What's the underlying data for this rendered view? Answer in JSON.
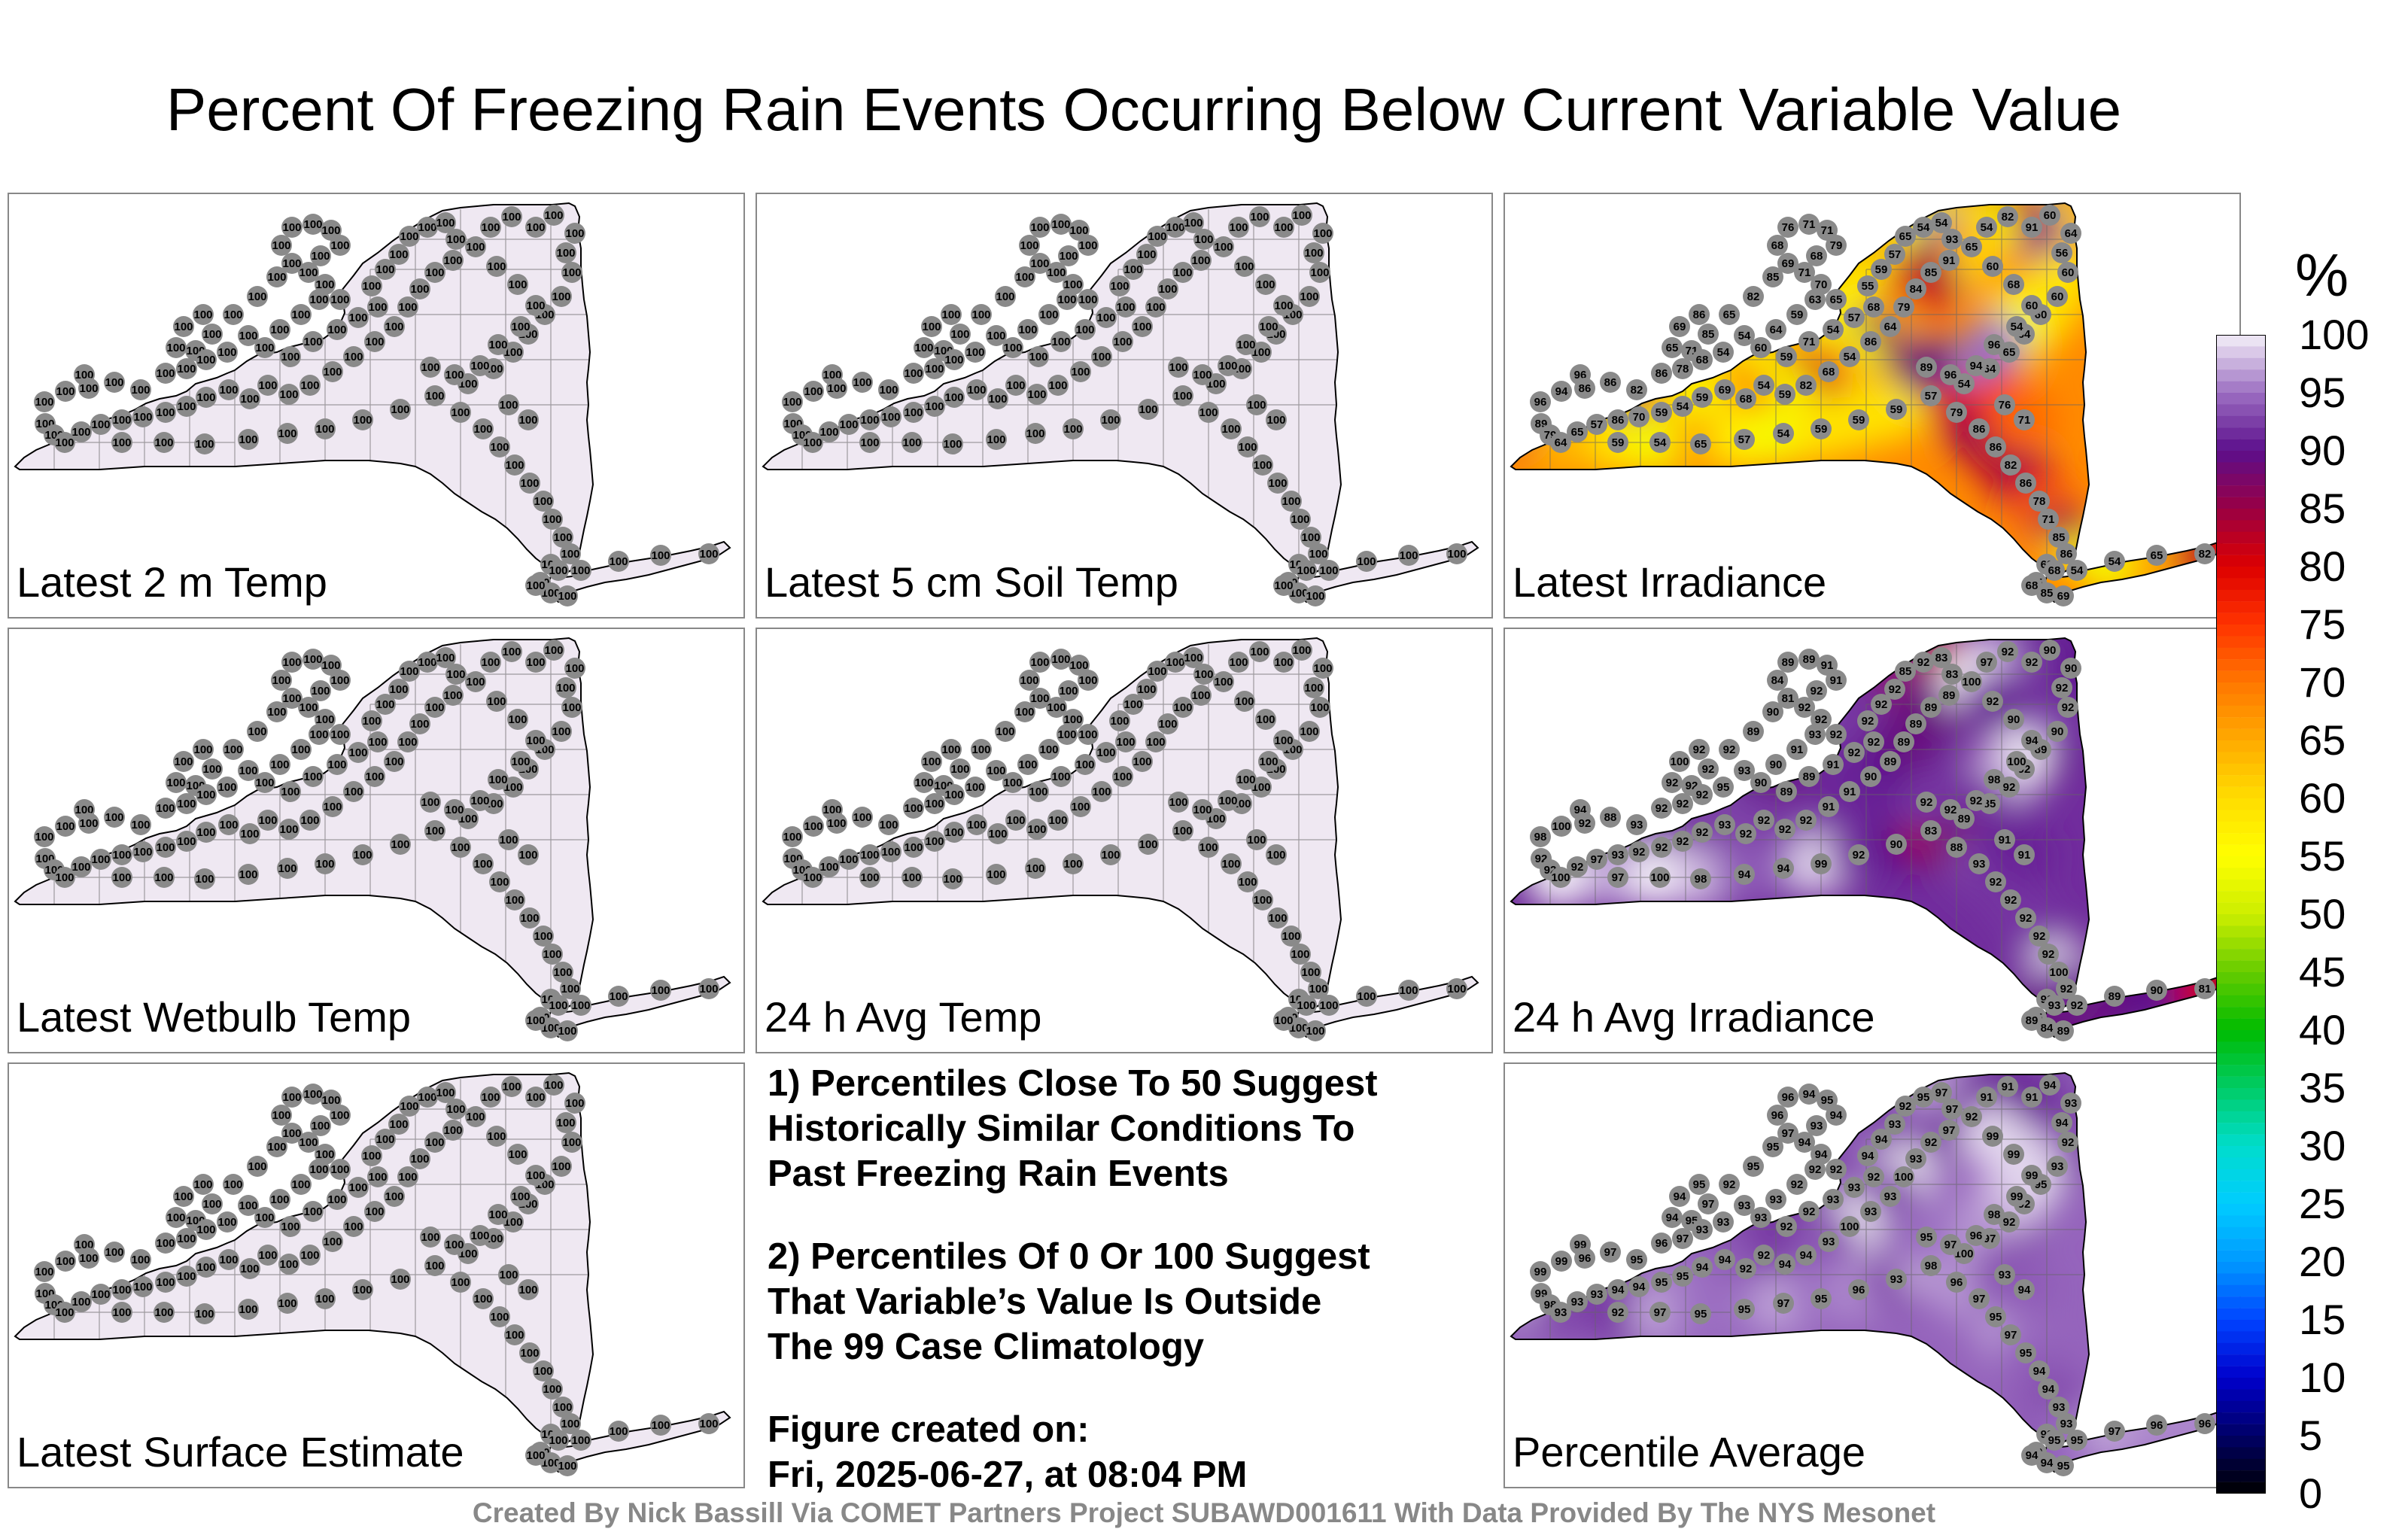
{
  "title": "Percent Of Freezing Rain Events Occurring Below Current Variable Value",
  "colors": {
    "land_fill_uniform": "#efe8f2",
    "station_marker": "#8a8a8a",
    "border": "#000000"
  },
  "panels": [
    {
      "id": "latest-2m-temp",
      "label": "Latest 2 m Temp",
      "mode": "uniform",
      "value": 100
    },
    {
      "id": "latest-5cm-soil-temp",
      "label": "Latest 5 cm Soil Temp",
      "mode": "uniform",
      "value": 100
    },
    {
      "id": "latest-irradiance",
      "label": "Latest Irradiance",
      "mode": "field",
      "field": "irradiance",
      "station_values": [
        96,
        94,
        96,
        89,
        79,
        86,
        86,
        82,
        86,
        78,
        71,
        85,
        86,
        69,
        65,
        68,
        54,
        54,
        65,
        82,
        85,
        69,
        68,
        76,
        71,
        71,
        79,
        68,
        71,
        70,
        65,
        63,
        59,
        64,
        60,
        59,
        71,
        54,
        57,
        68,
        55,
        59,
        57,
        65,
        54,
        54,
        93,
        91,
        85,
        84,
        79,
        64,
        86,
        54,
        68,
        82,
        59,
        54,
        68,
        69,
        59,
        54,
        59,
        70,
        86,
        57,
        65,
        64,
        59,
        54,
        65,
        57,
        54,
        59,
        59,
        59,
        57,
        54,
        64,
        65,
        64,
        60,
        60,
        60,
        56,
        64,
        60,
        91,
        82,
        54,
        65,
        60,
        68,
        60,
        54
      ]
    },
    {
      "id": "latest-wetbulb-temp",
      "label": "Latest Wetbulb Temp",
      "mode": "uniform",
      "value": 100
    },
    {
      "id": "24h-avg-temp",
      "label": "24 h Avg Temp",
      "mode": "uniform",
      "value": 100
    },
    {
      "id": "24h-avg-irradiance",
      "label": "24 h Avg Irradiance",
      "mode": "field",
      "field": "avg_irradiance",
      "station_values": [
        94,
        100,
        98,
        92,
        92,
        92,
        88,
        93,
        92,
        92,
        92,
        92,
        92,
        100,
        92,
        92,
        95,
        93,
        92,
        89,
        90,
        81,
        84,
        89,
        89,
        91,
        91,
        92,
        92,
        92,
        92,
        93,
        91,
        90,
        90,
        89,
        89,
        91,
        92,
        92,
        92,
        92,
        92,
        85,
        92,
        83,
        83,
        89,
        89,
        89,
        89,
        89,
        90,
        91,
        91,
        92,
        92,
        92,
        92,
        93,
        92,
        92,
        92,
        92,
        93,
        97,
        92,
        100,
        97,
        100,
        98,
        94,
        94,
        99,
        92,
        90,
        83,
        89,
        85,
        92,
        92,
        89,
        90,
        92,
        92,
        90,
        90,
        92,
        92,
        97,
        100,
        92,
        90
      ]
    },
    {
      "id": "latest-surface-estimate",
      "label": "Latest Surface Estimate",
      "mode": "uniform",
      "value": 100
    },
    {
      "id": "percentile-average",
      "label": "Percentile Average",
      "mode": "field",
      "field": "average",
      "station_values": [
        99,
        99,
        99,
        99,
        98,
        96,
        97,
        95,
        96,
        97,
        95,
        97,
        95,
        94,
        94,
        93,
        93,
        93,
        92,
        95,
        95,
        97,
        96,
        96,
        94,
        95,
        94,
        93,
        94,
        94,
        92,
        92,
        92,
        93,
        93,
        92,
        92,
        93,
        93,
        92,
        94,
        94,
        93,
        92,
        95,
        97,
        97,
        97,
        92,
        93,
        100,
        93,
        93,
        100,
        93,
        94,
        94,
        92,
        92,
        94,
        94,
        95,
        95,
        94,
        94,
        93,
        93,
        93,
        92,
        97,
        95,
        95,
        97,
        95,
        96,
        93,
        98,
        100,
        97,
        92,
        92,
        95,
        93,
        92,
        94,
        93,
        94,
        91,
        91,
        91,
        92
      ]
    }
  ],
  "notes": [
    {
      "lines": [
        "1) Percentiles Close To 50 Suggest",
        "Historically Similar Conditions To",
        "Past Freezing Rain Events"
      ]
    },
    {
      "lines": [
        "2) Percentiles Of 0 Or 100 Suggest",
        "That Variable’s Value Is Outside",
        "The 99 Case Climatology"
      ]
    },
    {
      "lines": [
        "Figure created on:",
        "Fri, 2025-06-27, at 08:04 PM"
      ]
    }
  ],
  "credit": "Created By Nick Bassill Via COMET Partners Project SUBAWD001611 With Data Provided By The NYS Mesonet",
  "colorbar": {
    "unit": "%",
    "ticks": [
      "100",
      "95",
      "90",
      "85",
      "80",
      "75",
      "70",
      "65",
      "60",
      "55",
      "50",
      "45",
      "40",
      "35",
      "30",
      "25",
      "20",
      "15",
      "10",
      "5",
      "0"
    ],
    "stops": [
      {
        "v": 0,
        "c": "#000000"
      },
      {
        "v": 5,
        "c": "#000066"
      },
      {
        "v": 10,
        "c": "#0000cc"
      },
      {
        "v": 15,
        "c": "#0044ff"
      },
      {
        "v": 20,
        "c": "#0099ff"
      },
      {
        "v": 25,
        "c": "#00ccff"
      },
      {
        "v": 30,
        "c": "#00ddcc"
      },
      {
        "v": 35,
        "c": "#00cc66"
      },
      {
        "v": 40,
        "c": "#00bb00"
      },
      {
        "v": 45,
        "c": "#66cc00"
      },
      {
        "v": 50,
        "c": "#ccee00"
      },
      {
        "v": 55,
        "c": "#ffff00"
      },
      {
        "v": 60,
        "c": "#ffdd00"
      },
      {
        "v": 65,
        "c": "#ffaa00"
      },
      {
        "v": 70,
        "c": "#ff7700"
      },
      {
        "v": 75,
        "c": "#ff3300"
      },
      {
        "v": 80,
        "c": "#dd0000"
      },
      {
        "v": 85,
        "c": "#990044"
      },
      {
        "v": 90,
        "c": "#5c0e8c"
      },
      {
        "v": 95,
        "c": "#9c6fc2"
      },
      {
        "v": 100,
        "c": "#f4f0f8"
      }
    ]
  }
}
